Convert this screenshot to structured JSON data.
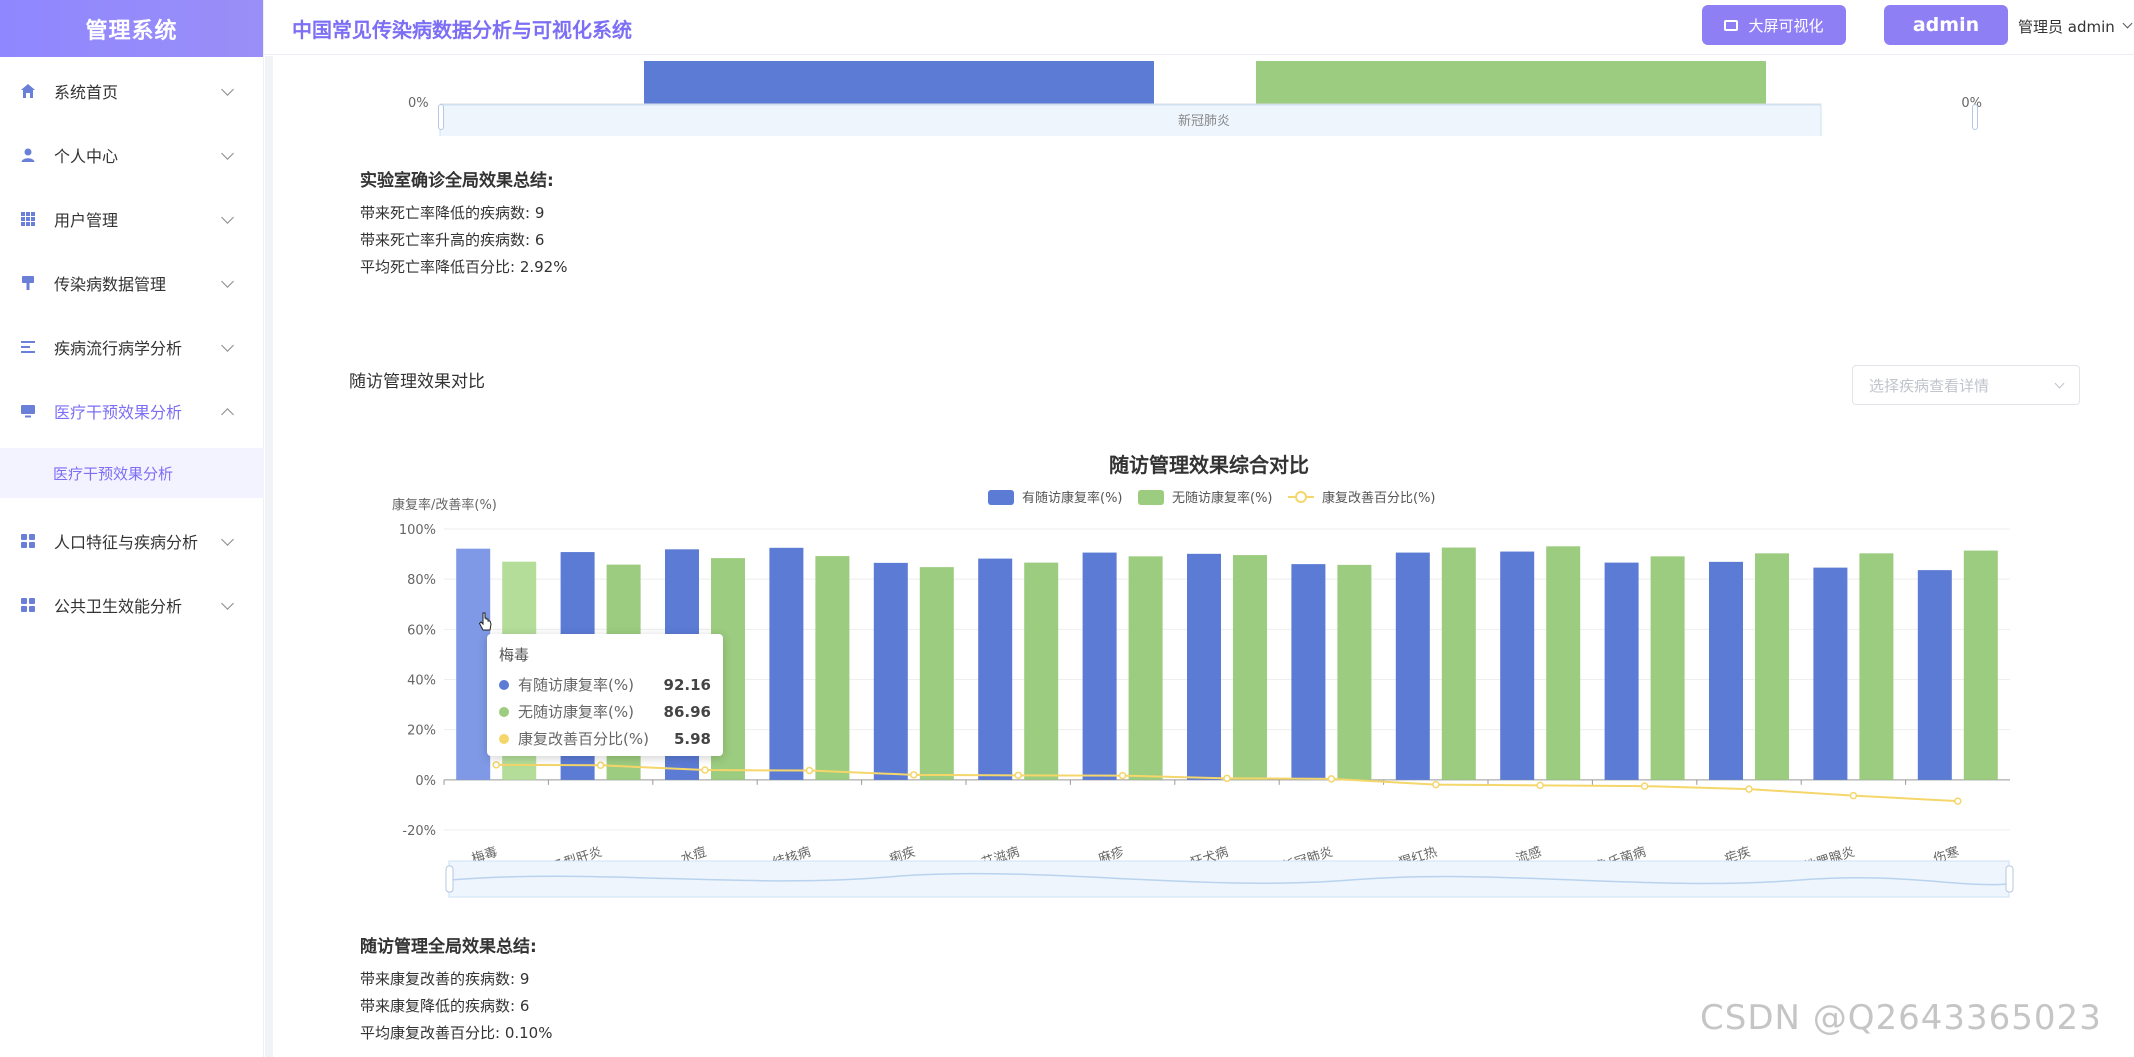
{
  "sidebar": {
    "brand": "管理系统",
    "items": [
      {
        "label": "系统首页"
      },
      {
        "label": "个人中心"
      },
      {
        "label": "用户管理"
      },
      {
        "label": "传染病数据管理"
      },
      {
        "label": "疾病流行病学分析"
      },
      {
        "label": "医疗干预效果分析"
      },
      {
        "label": "人口特征与疾病分析"
      },
      {
        "label": "公共卫生效能分析"
      }
    ],
    "active_sub": "医疗干预效果分析"
  },
  "header": {
    "title": "中国常见传染病数据分析与可视化系统",
    "big_screen_button": "大屏可视化",
    "admin_button": "admin",
    "user_label": "管理员 admin"
  },
  "top_chart": {
    "left_axis_label": "0%",
    "right_axis_label": "0%",
    "category": "新冠肺炎",
    "colors": {
      "blue": "#5b7bd5",
      "green": "#9ccc7f"
    }
  },
  "lab_summary": {
    "title": "实验室确诊全局效果总结:",
    "lines": [
      "带来死亡率降低的疾病数: 9",
      "带来死亡率升高的疾病数: 6",
      "平均死亡率降低百分比: 2.92%"
    ]
  },
  "followup_section": {
    "title": "随访管理效果对比",
    "select_placeholder": "选择疾病查看详情"
  },
  "chart_data": {
    "type": "bar",
    "title": "随访管理效果综合对比",
    "ylabel": "康复率/改善率(%)",
    "ylim": [
      -20,
      100
    ],
    "yticks": [
      "100%",
      "80%",
      "60%",
      "40%",
      "20%",
      "0%",
      "-20%"
    ],
    "categories": [
      "梅毒",
      "乙型肝炎",
      "水痘",
      "结核病",
      "痢疾",
      "艾滋病",
      "麻疹",
      "狂犬病",
      "新冠肺炎",
      "猩红热",
      "流感",
      "布鲁氏菌病",
      "疟疾",
      "流行性腮腺炎",
      "伤寒"
    ],
    "series": [
      {
        "name": "有随访康复率(%)",
        "type": "bar",
        "color": "#5b7bd5",
        "values": [
          92.16,
          90.8,
          91.9,
          92.5,
          86.5,
          88.2,
          90.6,
          90.1,
          86.0,
          90.6,
          91.0,
          86.6,
          86.9,
          84.6,
          83.6
        ]
      },
      {
        "name": "无随访康复率(%)",
        "type": "bar",
        "color": "#9ccc7f",
        "values": [
          86.96,
          85.8,
          88.4,
          89.2,
          84.8,
          86.6,
          89.1,
          89.6,
          85.7,
          92.6,
          93.1,
          89.1,
          90.3,
          90.3,
          91.4
        ]
      },
      {
        "name": "康复改善百分比(%)",
        "type": "line",
        "color": "#f5d66b",
        "values": [
          5.98,
          5.8,
          3.9,
          3.7,
          2.0,
          1.8,
          1.7,
          0.6,
          0.4,
          -1.9,
          -2.2,
          -2.5,
          -3.7,
          -6.3,
          -8.5
        ]
      }
    ],
    "legend_position": "top-center",
    "grid": true
  },
  "tooltip": {
    "title": "梅毒",
    "rows": [
      {
        "name": "有随访康复率(%)",
        "value": "92.16",
        "color": "#5b7bd5"
      },
      {
        "name": "无随访康复率(%)",
        "value": "86.96",
        "color": "#9ccc7f"
      },
      {
        "name": "康复改善百分比(%)",
        "value": "5.98",
        "color": "#f5d66b"
      }
    ]
  },
  "followup_summary": {
    "title": "随访管理全局效果总结:",
    "lines": [
      "带来康复改善的疾病数: 9",
      "带来康复降低的疾病数: 6",
      "平均康复改善百分比: 0.10%"
    ]
  },
  "watermark": "CSDN @Q2643365023"
}
